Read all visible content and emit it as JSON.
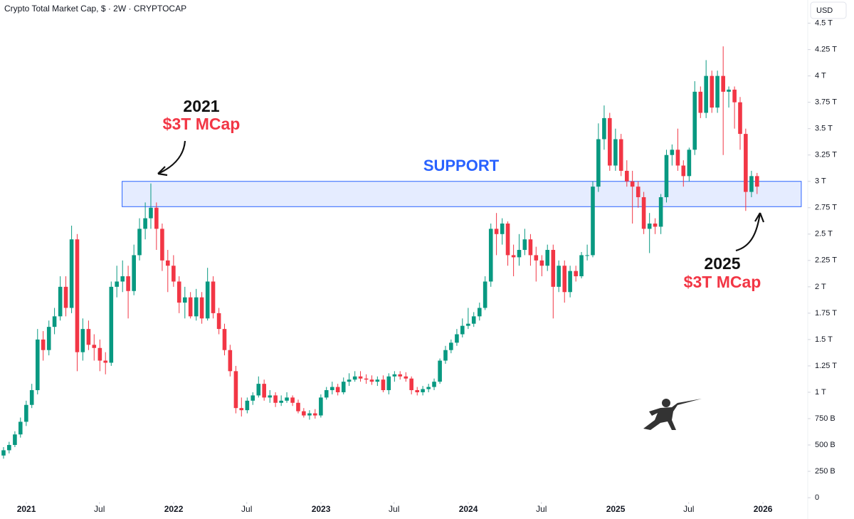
{
  "chart_data": {
    "type": "candlestick",
    "title": "Crypto Total Market Cap, $ · 2W · CRYPTOCAP",
    "currency": "USD",
    "up_color": "#089981",
    "down_color": "#f23645",
    "grid": false,
    "xlim": [
      2020.821,
      2026.304
    ],
    "ylim": [
      -0.04,
      4.72
    ],
    "xticks": [
      2021,
      {
        "value": 2021.496,
        "label": "Jul"
      },
      2022,
      {
        "value": 2022.496,
        "label": "Jul"
      },
      2023,
      {
        "value": 2023.496,
        "label": "Jul"
      },
      2024,
      {
        "value": 2024.496,
        "label": "Jul"
      },
      2025,
      {
        "value": 2025.496,
        "label": "Jul"
      },
      2026
    ],
    "yticks": [
      0,
      {
        "value": 0.25,
        "label": "250 B"
      },
      {
        "value": 0.5,
        "label": "500 B"
      },
      {
        "value": 0.75,
        "label": "750 B"
      },
      {
        "value": 1,
        "label": "1 T"
      },
      {
        "value": 1.25,
        "label": "1.25 T"
      },
      {
        "value": 1.5,
        "label": "1.5 T"
      },
      {
        "value": 1.75,
        "label": "1.75 T"
      },
      {
        "value": 2,
        "label": "2 T"
      },
      {
        "value": 2.25,
        "label": "2.25 T"
      },
      {
        "value": 2.5,
        "label": "2.5 T"
      },
      {
        "value": 2.75,
        "label": "2.75 T"
      },
      {
        "value": 3,
        "label": "3 T"
      },
      {
        "value": 3.25,
        "label": "3.25 T"
      },
      {
        "value": 3.5,
        "label": "3.5 T"
      },
      {
        "value": 3.75,
        "label": "3.75 T"
      },
      {
        "value": 4,
        "label": "4 T"
      },
      {
        "value": 4.25,
        "label": "4.25 T"
      },
      {
        "value": 4.5,
        "label": "4.5 T"
      }
    ],
    "x": [
      2020.845,
      2020.883,
      2020.922,
      2020.96,
      2020.999,
      2021.037,
      2021.076,
      2021.114,
      2021.153,
      2021.191,
      2021.23,
      2021.268,
      2021.307,
      2021.345,
      2021.383,
      2021.422,
      2021.46,
      2021.499,
      2021.537,
      2021.576,
      2021.614,
      2021.653,
      2021.691,
      2021.73,
      2021.768,
      2021.807,
      2021.845,
      2021.883,
      2021.922,
      2021.96,
      2021.999,
      2022.037,
      2022.076,
      2022.114,
      2022.153,
      2022.191,
      2022.23,
      2022.268,
      2022.307,
      2022.345,
      2022.383,
      2022.422,
      2022.46,
      2022.499,
      2022.537,
      2022.576,
      2022.614,
      2022.653,
      2022.691,
      2022.73,
      2022.768,
      2022.807,
      2022.845,
      2022.883,
      2022.922,
      2022.96,
      2022.999,
      2023.037,
      2023.076,
      2023.114,
      2023.153,
      2023.191,
      2023.23,
      2023.268,
      2023.307,
      2023.345,
      2023.383,
      2023.422,
      2023.46,
      2023.499,
      2023.537,
      2023.576,
      2023.614,
      2023.653,
      2023.691,
      2023.73,
      2023.768,
      2023.807,
      2023.845,
      2023.883,
      2023.922,
      2023.96,
      2023.999,
      2024.037,
      2024.076,
      2024.114,
      2024.153,
      2024.191,
      2024.23,
      2024.268,
      2024.307,
      2024.345,
      2024.383,
      2024.422,
      2024.46,
      2024.499,
      2024.537,
      2024.576,
      2024.614,
      2024.653,
      2024.691,
      2024.73,
      2024.768,
      2024.807,
      2024.845,
      2024.883,
      2024.922,
      2024.96,
      2024.999,
      2025.037,
      2025.076,
      2025.114,
      2025.153,
      2025.191,
      2025.23,
      2025.268,
      2025.307,
      2025.345,
      2025.383,
      2025.422,
      2025.46,
      2025.499,
      2025.537,
      2025.576,
      2025.614,
      2025.653,
      2025.691,
      2025.73,
      2025.768,
      2025.807,
      2025.845,
      2025.883,
      2025.922,
      2025.96
    ],
    "open": [
      0.4,
      0.45,
      0.5,
      0.6,
      0.72,
      0.88,
      1.02,
      1.5,
      1.4,
      1.62,
      1.72,
      2.0,
      1.8,
      2.45,
      1.38,
      1.6,
      1.45,
      1.42,
      1.3,
      1.28,
      2.0,
      2.05,
      2.1,
      1.96,
      2.3,
      2.55,
      2.65,
      2.75,
      2.55,
      2.25,
      2.2,
      2.05,
      1.85,
      1.9,
      1.72,
      1.9,
      1.7,
      2.05,
      1.75,
      1.6,
      1.4,
      1.2,
      0.85,
      0.83,
      0.92,
      0.97,
      1.08,
      0.95,
      0.97,
      0.9,
      0.92,
      0.95,
      0.9,
      0.82,
      0.78,
      0.8,
      0.78,
      0.95,
      1.02,
      1.05,
      1.0,
      1.1,
      1.12,
      1.15,
      1.13,
      1.12,
      1.1,
      1.12,
      1.02,
      1.15,
      1.17,
      1.15,
      1.13,
      1.02,
      1.0,
      1.03,
      1.05,
      1.1,
      1.3,
      1.4,
      1.47,
      1.55,
      1.63,
      1.65,
      1.72,
      1.8,
      2.05,
      2.55,
      2.5,
      2.6,
      2.3,
      2.28,
      2.35,
      2.45,
      2.3,
      2.25,
      2.2,
      2.35,
      2.0,
      2.2,
      1.95,
      2.15,
      2.1,
      2.3,
      2.3,
      2.95,
      3.4,
      3.6,
      3.15,
      3.4,
      3.1,
      3.0,
      2.95,
      2.85,
      2.55,
      2.6,
      2.57,
      2.85,
      3.25,
      3.3,
      3.15,
      3.05,
      3.3,
      3.85,
      3.65,
      4.0,
      3.7,
      4.0,
      3.85,
      3.87,
      3.75,
      3.45,
      2.9,
      3.05
    ],
    "high": [
      0.48,
      0.53,
      0.63,
      0.76,
      0.92,
      1.08,
      1.6,
      1.58,
      1.68,
      1.8,
      2.1,
      2.1,
      2.58,
      2.5,
      1.7,
      1.68,
      1.55,
      1.5,
      1.38,
      2.05,
      2.2,
      2.25,
      2.2,
      2.4,
      2.65,
      2.8,
      2.98,
      2.8,
      2.6,
      2.35,
      2.3,
      2.1,
      2.0,
      1.95,
      1.98,
      1.95,
      2.18,
      2.1,
      1.8,
      1.65,
      1.45,
      1.25,
      0.95,
      0.95,
      1.0,
      1.15,
      1.12,
      1.02,
      1.0,
      0.97,
      1.0,
      0.97,
      0.93,
      0.85,
      0.83,
      0.84,
      0.98,
      1.05,
      1.1,
      1.08,
      1.14,
      1.18,
      1.2,
      1.2,
      1.17,
      1.16,
      1.15,
      1.16,
      1.18,
      1.2,
      1.2,
      1.19,
      1.15,
      1.05,
      1.06,
      1.08,
      1.13,
      1.32,
      1.44,
      1.5,
      1.6,
      1.7,
      1.8,
      1.76,
      1.85,
      2.1,
      2.6,
      2.7,
      2.65,
      2.62,
      2.4,
      2.5,
      2.55,
      2.5,
      2.38,
      2.3,
      2.4,
      2.4,
      2.25,
      2.25,
      2.2,
      2.2,
      2.33,
      2.4,
      3.0,
      3.55,
      3.72,
      3.65,
      3.5,
      3.45,
      3.2,
      3.1,
      3.0,
      2.9,
      2.7,
      2.65,
      2.88,
      3.3,
      3.35,
      3.5,
      3.2,
      3.32,
      3.95,
      3.9,
      4.15,
      4.05,
      4.05,
      4.28,
      3.9,
      3.9,
      3.8,
      3.5,
      3.1,
      3.08
    ],
    "low": [
      0.37,
      0.42,
      0.48,
      0.57,
      0.68,
      0.85,
      0.98,
      1.3,
      1.35,
      1.55,
      1.68,
      1.72,
      1.75,
      1.2,
      1.3,
      1.4,
      1.3,
      1.2,
      1.17,
      1.25,
      1.9,
      1.95,
      1.7,
      1.92,
      2.25,
      2.45,
      2.55,
      2.35,
      2.15,
      1.95,
      2.0,
      1.75,
      1.7,
      1.7,
      1.68,
      1.65,
      1.68,
      1.7,
      1.55,
      1.35,
      1.15,
      0.8,
      0.77,
      0.8,
      0.88,
      0.95,
      0.92,
      0.9,
      0.86,
      0.87,
      0.9,
      0.87,
      0.8,
      0.76,
      0.74,
      0.75,
      0.76,
      0.93,
      0.98,
      0.97,
      0.98,
      1.06,
      1.1,
      1.1,
      1.08,
      1.07,
      1.06,
      1.0,
      0.98,
      1.1,
      1.12,
      1.1,
      0.98,
      0.97,
      0.97,
      1.0,
      1.02,
      1.08,
      1.27,
      1.37,
      1.44,
      1.52,
      1.6,
      1.62,
      1.68,
      1.78,
      2.0,
      2.3,
      2.4,
      2.2,
      2.1,
      2.2,
      2.3,
      2.2,
      2.05,
      2.1,
      2.15,
      1.7,
      1.95,
      1.85,
      1.9,
      2.05,
      2.08,
      2.25,
      2.28,
      2.9,
      3.3,
      3.1,
      3.1,
      3.05,
      2.95,
      2.6,
      2.75,
      2.5,
      2.32,
      2.5,
      2.5,
      2.8,
      3.15,
      3.1,
      2.95,
      3.0,
      3.25,
      3.6,
      3.6,
      3.65,
      3.65,
      3.25,
      3.7,
      3.5,
      3.3,
      2.72,
      2.85,
      2.88
    ],
    "close": [
      0.45,
      0.5,
      0.6,
      0.72,
      0.88,
      1.02,
      1.5,
      1.4,
      1.62,
      1.72,
      2.0,
      1.8,
      2.45,
      1.38,
      1.6,
      1.45,
      1.42,
      1.3,
      1.28,
      2.0,
      2.05,
      2.1,
      1.96,
      2.3,
      2.55,
      2.65,
      2.75,
      2.55,
      2.25,
      2.2,
      2.05,
      1.85,
      1.9,
      1.72,
      1.9,
      1.7,
      2.05,
      1.75,
      1.6,
      1.4,
      1.2,
      0.85,
      0.83,
      0.92,
      0.97,
      1.08,
      0.95,
      0.97,
      0.9,
      0.92,
      0.95,
      0.9,
      0.82,
      0.78,
      0.8,
      0.78,
      0.95,
      1.02,
      1.05,
      1.0,
      1.1,
      1.12,
      1.15,
      1.13,
      1.12,
      1.1,
      1.12,
      1.02,
      1.15,
      1.17,
      1.15,
      1.13,
      1.02,
      1.0,
      1.03,
      1.05,
      1.1,
      1.3,
      1.4,
      1.47,
      1.55,
      1.63,
      1.65,
      1.72,
      1.8,
      2.05,
      2.55,
      2.5,
      2.6,
      2.3,
      2.28,
      2.35,
      2.45,
      2.3,
      2.25,
      2.2,
      2.35,
      2.0,
      2.2,
      1.95,
      2.15,
      2.1,
      2.3,
      2.3,
      2.95,
      3.4,
      3.6,
      3.15,
      3.4,
      3.1,
      3.0,
      2.95,
      2.85,
      2.55,
      2.6,
      2.57,
      2.85,
      3.25,
      3.3,
      3.15,
      3.05,
      3.3,
      3.85,
      3.65,
      4.0,
      3.7,
      4.0,
      3.85,
      3.87,
      3.75,
      3.45,
      2.9,
      3.05,
      2.95
    ],
    "support": {
      "label": "SUPPORT",
      "color": "#2962ff",
      "xlim": [
        2021.65,
        2026.26
      ],
      "ylim": [
        2.76,
        3.0
      ]
    },
    "annotations": [
      {
        "year": "2021",
        "text": "$3T MCap"
      },
      {
        "year": "2025",
        "text": "$3T MCap"
      }
    ]
  }
}
